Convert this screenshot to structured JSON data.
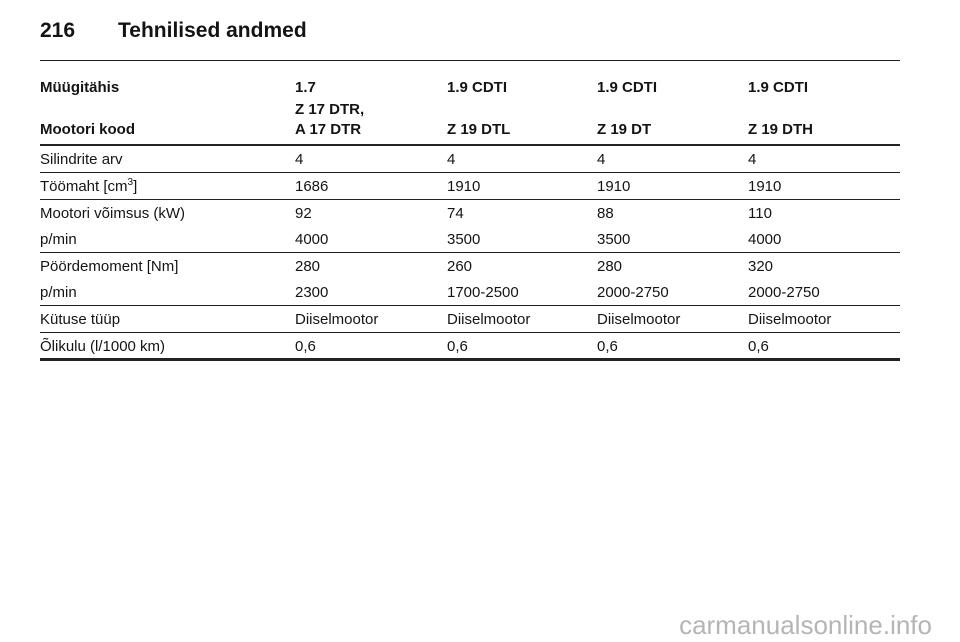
{
  "header": {
    "page_number": "216",
    "title": "Tehnilised andmed"
  },
  "table": {
    "head": [
      [
        "Müügitähis",
        "1.7",
        "1.9 CDTI",
        "1.9 CDTI",
        "1.9 CDTI"
      ],
      [
        [
          "Mootori kood"
        ],
        [
          "Z 17 DTR,",
          "A 17 DTR"
        ],
        [
          "Z 19 DTL"
        ],
        [
          "Z 19 DT"
        ],
        [
          "Z 19 DTH"
        ]
      ]
    ],
    "groups": [
      [
        [
          "Silindrite arv",
          "4",
          "4",
          "4",
          "4"
        ]
      ],
      [
        [
          {
            "text": "Töömaht [cm",
            "sup": "3",
            "after": "]"
          },
          "1686",
          "1910",
          "1910",
          "1910"
        ]
      ],
      [
        [
          "Mootori võimsus (kW)",
          "92",
          "74",
          "88",
          "110"
        ],
        [
          "p/min",
          "4000",
          "3500",
          "3500",
          "4000"
        ]
      ],
      [
        [
          "Pöördemoment [Nm]",
          "280",
          "260",
          "280",
          "320"
        ],
        [
          "p/min",
          "2300",
          "1700-2500",
          "2000-2750",
          "2000-2750"
        ]
      ],
      [
        [
          "Kütuse tüüp",
          "Diiselmootor",
          "Diiselmootor",
          "Diiselmootor",
          "Diiselmootor"
        ]
      ],
      [
        [
          "Õlikulu (l/1000 km)",
          "0,6",
          "0,6",
          "0,6",
          "0,6"
        ]
      ]
    ]
  },
  "watermark": "carmanualsonline.info"
}
